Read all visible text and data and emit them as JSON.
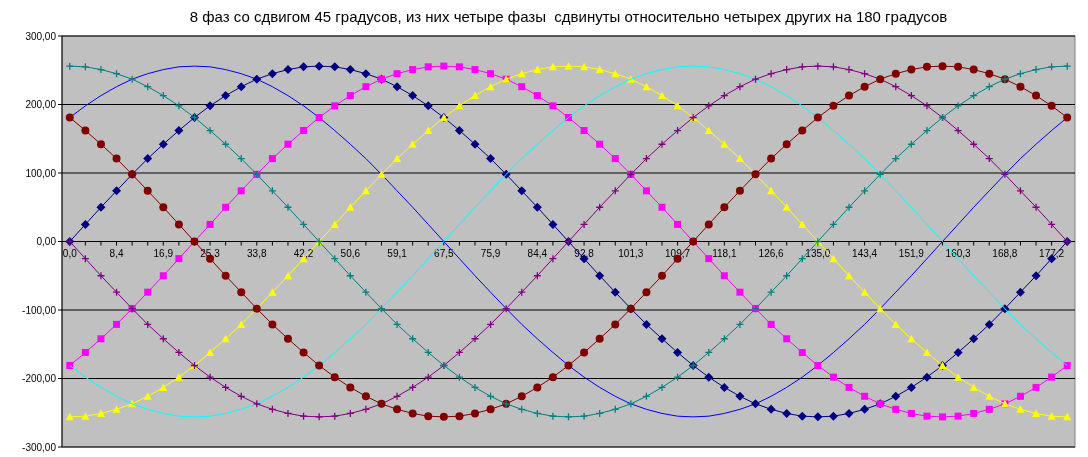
{
  "chart_data": {
    "type": "line",
    "title": "8 фаз со сдвигом 45 градусов, из них четыре фазы  сдвинуты относительно четырех других на 180 градусов",
    "categories": [
      "0,0",
      null,
      null,
      "8,4",
      null,
      null,
      "16,9",
      null,
      null,
      "25,3",
      null,
      null,
      "33,8",
      null,
      null,
      "42,2",
      null,
      null,
      "50,6",
      null,
      null,
      "59,1",
      null,
      null,
      "67,5",
      null,
      null,
      "75,9",
      null,
      null,
      "84,4",
      null,
      null,
      "92,8",
      null,
      null,
      "101,3",
      null,
      null,
      "109,7",
      null,
      null,
      "118,1",
      null,
      null,
      "126,6",
      null,
      null,
      "135,0",
      null,
      null,
      "143,4",
      null,
      null,
      "151,9",
      null,
      null,
      "160,3",
      null,
      null,
      "168,8",
      null,
      null,
      "177,2",
      null
    ],
    "ylim": [
      -300,
      300
    ],
    "yticks": [
      {
        "value": -300,
        "label": "-300,00"
      },
      {
        "value": -200,
        "label": "-200,00"
      },
      {
        "value": -100,
        "label": "-100,00"
      },
      {
        "value": 0,
        "label": "0,00"
      },
      {
        "value": 100,
        "label": "100,00"
      },
      {
        "value": 200,
        "label": "200,00"
      },
      {
        "value": 300,
        "label": "300,00"
      }
    ],
    "grid": "y",
    "series": [
      {
        "color": "#0000ff",
        "marker": "none",
        "values": [
          181,
          198,
          213,
          226,
          237,
          245,
          251,
          255,
          256,
          255,
          251,
          245,
          237,
          226,
          213,
          198,
          181,
          162,
          142,
          121,
          98,
          74,
          50,
          25,
          0,
          -25,
          -50,
          -74,
          -98,
          -121,
          -142,
          -162,
          -181,
          -198,
          -213,
          -226,
          -237,
          -245,
          -251,
          -255,
          -256,
          -255,
          -251,
          -245,
          -237,
          -226,
          -213,
          -198,
          -181,
          -162,
          -142,
          -121,
          -98,
          -74,
          -50,
          -25,
          0,
          25,
          50,
          74,
          98,
          121,
          142,
          162,
          181
        ]
      },
      {
        "color": "#000080",
        "marker": "diamond",
        "values": [
          0,
          25,
          50,
          74,
          98,
          121,
          142,
          162,
          181,
          198,
          213,
          226,
          237,
          245,
          251,
          255,
          256,
          255,
          251,
          245,
          237,
          226,
          213,
          198,
          181,
          162,
          142,
          121,
          98,
          74,
          50,
          25,
          0,
          -25,
          -50,
          -74,
          -98,
          -121,
          -142,
          -162,
          -181,
          -198,
          -213,
          -226,
          -237,
          -245,
          -251,
          -255,
          -256,
          -255,
          -251,
          -245,
          -237,
          -226,
          -213,
          -198,
          -181,
          -162,
          -142,
          -121,
          -98,
          -74,
          -50,
          -25,
          0
        ]
      },
      {
        "color": "#ff00ff",
        "marker": "square",
        "values": [
          -181,
          -162,
          -142,
          -121,
          -98,
          -74,
          -50,
          -25,
          0,
          25,
          50,
          74,
          98,
          121,
          142,
          162,
          181,
          198,
          213,
          226,
          237,
          245,
          251,
          255,
          256,
          255,
          251,
          245,
          237,
          226,
          213,
          198,
          181,
          162,
          142,
          121,
          98,
          74,
          50,
          25,
          0,
          -25,
          -50,
          -74,
          -98,
          -121,
          -142,
          -162,
          -181,
          -198,
          -213,
          -226,
          -237,
          -245,
          -251,
          -255,
          -256,
          -255,
          -251,
          -245,
          -237,
          -226,
          -213,
          -198,
          -181
        ]
      },
      {
        "color": "#ffff00",
        "marker": "triangle",
        "values": [
          -256,
          -255,
          -251,
          -245,
          -237,
          -226,
          -213,
          -198,
          -181,
          -162,
          -142,
          -121,
          -98,
          -74,
          -50,
          -25,
          0,
          25,
          50,
          74,
          98,
          121,
          142,
          162,
          181,
          198,
          213,
          226,
          237,
          245,
          251,
          255,
          256,
          255,
          251,
          245,
          237,
          226,
          213,
          198,
          181,
          162,
          142,
          121,
          98,
          74,
          50,
          25,
          0,
          -25,
          -50,
          -74,
          -98,
          -121,
          -142,
          -162,
          -181,
          -198,
          -213,
          -226,
          -237,
          -245,
          -251,
          -255,
          -256
        ]
      },
      {
        "color": "#00ffff",
        "marker": "none",
        "values": [
          -181,
          -198,
          -213,
          -226,
          -237,
          -245,
          -251,
          -255,
          -256,
          -255,
          -251,
          -245,
          -237,
          -226,
          -213,
          -198,
          -181,
          -162,
          -142,
          -121,
          -98,
          -74,
          -50,
          -25,
          0,
          25,
          50,
          74,
          98,
          121,
          142,
          162,
          181,
          198,
          213,
          226,
          237,
          245,
          251,
          255,
          256,
          255,
          251,
          245,
          237,
          226,
          213,
          198,
          181,
          162,
          142,
          121,
          98,
          74,
          50,
          25,
          0,
          -25,
          -50,
          -74,
          -98,
          -121,
          -142,
          -162,
          -181
        ]
      },
      {
        "color": "#800080",
        "marker": "cross",
        "values": [
          0,
          -25,
          -50,
          -74,
          -98,
          -121,
          -142,
          -162,
          -181,
          -198,
          -213,
          -226,
          -237,
          -245,
          -251,
          -255,
          -256,
          -255,
          -251,
          -245,
          -237,
          -226,
          -213,
          -198,
          -181,
          -162,
          -142,
          -121,
          -98,
          -74,
          -50,
          -25,
          0,
          25,
          50,
          74,
          98,
          121,
          142,
          162,
          181,
          198,
          213,
          226,
          237,
          245,
          251,
          255,
          256,
          255,
          251,
          245,
          237,
          226,
          213,
          198,
          181,
          162,
          142,
          121,
          98,
          74,
          50,
          25,
          0
        ]
      },
      {
        "color": "#800000",
        "marker": "circle",
        "values": [
          181,
          162,
          142,
          121,
          98,
          74,
          50,
          25,
          0,
          -25,
          -50,
          -74,
          -98,
          -121,
          -142,
          -162,
          -181,
          -198,
          -213,
          -226,
          -237,
          -245,
          -251,
          -255,
          -256,
          -255,
          -251,
          -245,
          -237,
          -226,
          -213,
          -198,
          -181,
          -162,
          -142,
          -121,
          -98,
          -74,
          -50,
          -25,
          0,
          25,
          50,
          74,
          98,
          121,
          142,
          162,
          181,
          198,
          213,
          226,
          237,
          245,
          251,
          255,
          256,
          255,
          251,
          245,
          237,
          226,
          213,
          198,
          181
        ]
      },
      {
        "color": "#008080",
        "marker": "cross",
        "values": [
          256,
          255,
          251,
          245,
          237,
          226,
          213,
          198,
          181,
          162,
          142,
          121,
          98,
          74,
          50,
          25,
          0,
          -25,
          -50,
          -74,
          -98,
          -121,
          -142,
          -162,
          -181,
          -198,
          -213,
          -226,
          -237,
          -245,
          -251,
          -255,
          -256,
          -255,
          -251,
          -245,
          -237,
          -226,
          -213,
          -198,
          -181,
          -162,
          -142,
          -121,
          -98,
          -74,
          -50,
          -25,
          0,
          25,
          50,
          74,
          98,
          121,
          142,
          162,
          181,
          198,
          213,
          226,
          237,
          245,
          251,
          255,
          256
        ]
      }
    ]
  }
}
